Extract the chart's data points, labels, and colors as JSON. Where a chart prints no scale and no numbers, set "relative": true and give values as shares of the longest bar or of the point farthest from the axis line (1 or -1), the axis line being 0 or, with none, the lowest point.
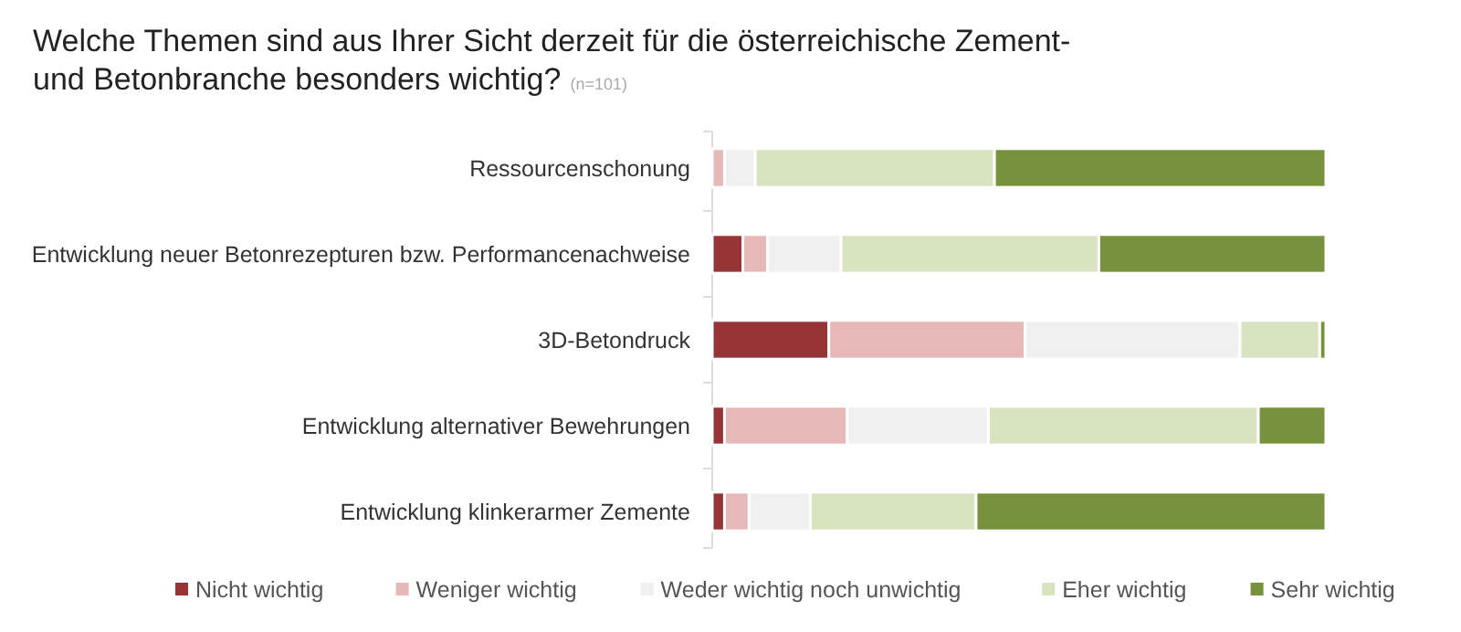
{
  "chart_data": {
    "type": "bar",
    "orientation": "horizontal",
    "stacked": true,
    "relative": true,
    "title": "Welche Themen sind aus Ihrer Sicht derzeit für die österreichische Zement- und Betonbranche besonders wichtig?",
    "subtitle": "(n=101)",
    "categories": [
      "Ressourcenschonung",
      "Entwicklung neuer Betonrezepturen bzw. Performancenachweise",
      "3D-Betondruck",
      "Entwicklung alternativer Bewehrungen",
      "Entwicklung klinkerarmer Zemente"
    ],
    "series": [
      {
        "name": "Nicht wichtig",
        "color": "#963436",
        "values": [
          0,
          0.05,
          0.19,
          0.02,
          0.02
        ]
      },
      {
        "name": "Weniger wichtig",
        "color": "#e6b8b8",
        "values": [
          0.02,
          0.04,
          0.32,
          0.2,
          0.04
        ]
      },
      {
        "name": "Weder wichtig noch unwichtig",
        "color": "#f0f0f0",
        "values": [
          0.05,
          0.12,
          0.35,
          0.23,
          0.1
        ]
      },
      {
        "name": "Eher wichtig",
        "color": "#d8e4c0",
        "values": [
          0.39,
          0.42,
          0.13,
          0.44,
          0.27
        ]
      },
      {
        "name": "Sehr wichtig",
        "color": "#76923c",
        "values": [
          0.54,
          0.37,
          0.01,
          0.11,
          0.57
        ]
      }
    ],
    "legend": "bottom"
  }
}
